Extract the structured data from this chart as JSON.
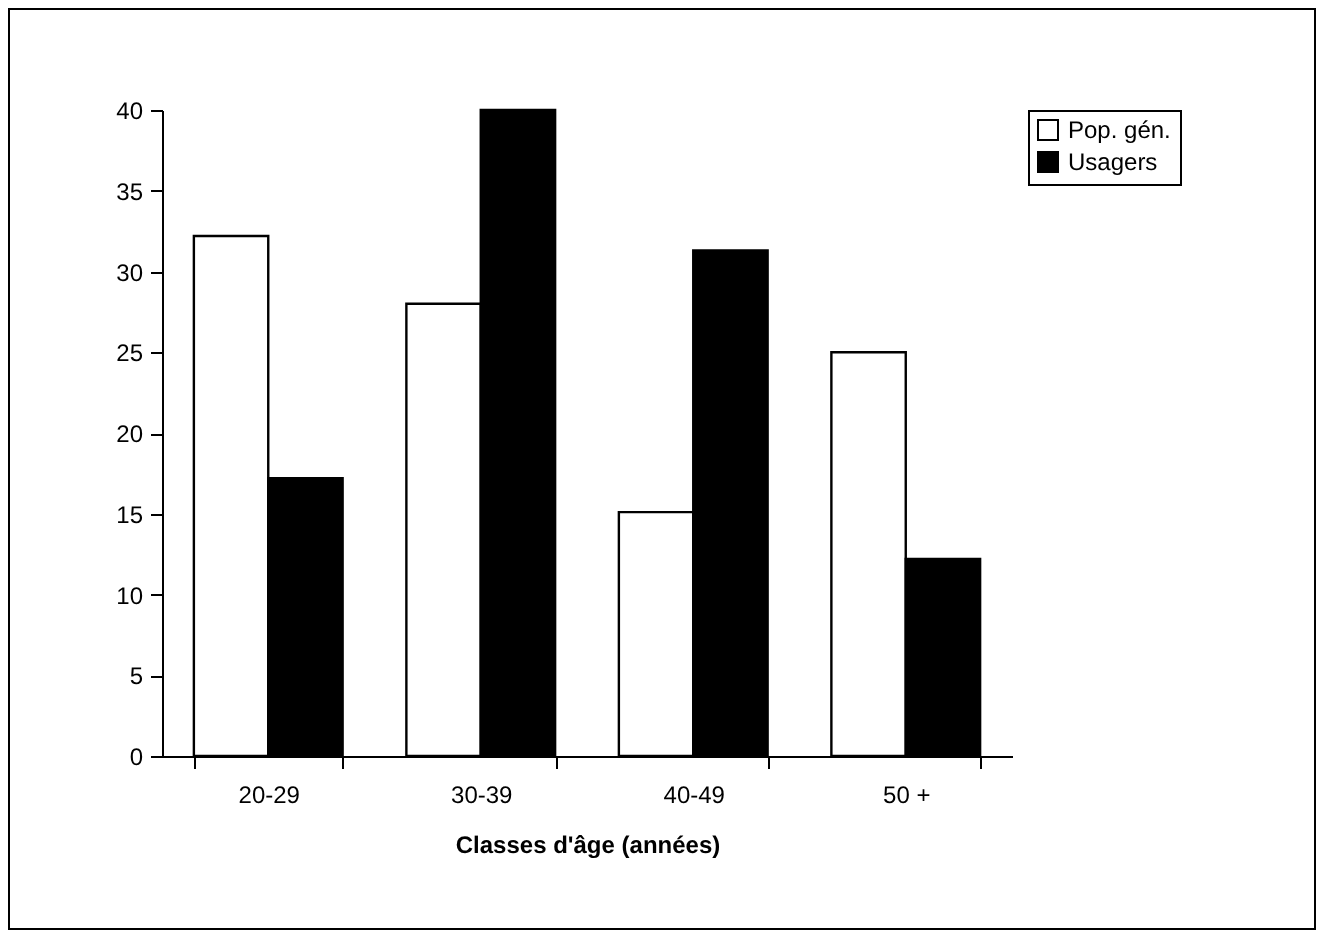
{
  "chart_data": {
    "type": "bar",
    "xlabel": "Classes d'âge (années)",
    "categories": [
      "20-29",
      "30-39",
      "40-49",
      "50 +"
    ],
    "series": [
      {
        "name": "Pop. gén.",
        "color": "#ffffff",
        "values": [
          32.2,
          28,
          15.1,
          25
        ]
      },
      {
        "name": "Usagers",
        "color": "#000000",
        "values": [
          17.2,
          40,
          31.3,
          12.2
        ]
      }
    ],
    "ylim": [
      0,
      40
    ],
    "yticks": [
      0,
      5,
      10,
      15,
      20,
      25,
      30,
      35,
      40
    ],
    "grid": false,
    "legend": "right"
  }
}
